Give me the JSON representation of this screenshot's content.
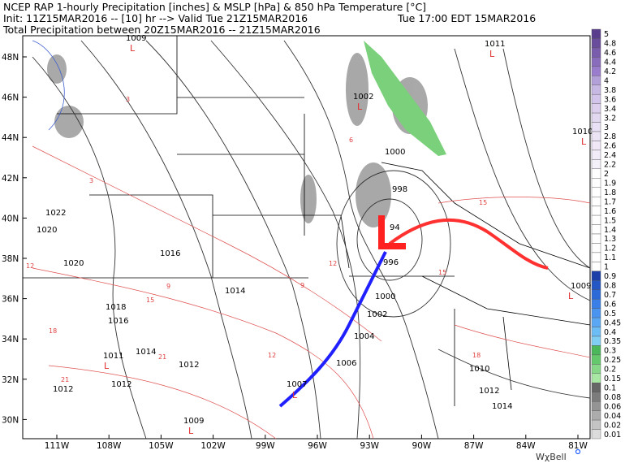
{
  "header": {
    "line1": "NCEP RAP 1-hourly Precipitation [inches] & MSLP [hPa] & 850 hPa Temperature [°C]",
    "init": "Init: 11Z15MAR2016 -- [10] hr --> Valid Tue 21Z15MAR2016",
    "local_time": "Tue 17:00 EDT 15MAR2016",
    "line3": "Total Precipitation between 20Z15MAR2016 -- 21Z15MAR2016"
  },
  "latitude_labels": [
    "48N",
    "46N",
    "44N",
    "42N",
    "40N",
    "38N",
    "36N",
    "34N",
    "32N",
    "30N"
  ],
  "longitude_labels": [
    "111W",
    "108W",
    "105W",
    "102W",
    "99W",
    "96W",
    "93W",
    "90W",
    "87W",
    "84W",
    "81W"
  ],
  "pressure_labels": [
    "1009",
    "1011",
    "1002",
    "1010",
    "1000",
    "998",
    "94",
    "996",
    "1000",
    "1002",
    "1004",
    "1006",
    "1007",
    "1022",
    "1020",
    "1020",
    "1016",
    "1014",
    "1018",
    "1016",
    "1014",
    "1012",
    "1011",
    "1012",
    "1012",
    "1009",
    "1009",
    "1010",
    "1012",
    "1014"
  ],
  "temperature_labels": [
    "3",
    "9",
    "12",
    "15",
    "18",
    "21",
    "6",
    "12",
    "15",
    "18",
    "21",
    "9",
    "3",
    "12",
    "15"
  ],
  "colorbar": {
    "levels": [
      "5",
      "4.8",
      "4.6",
      "4.4",
      "4.2",
      "4",
      "3.8",
      "3.6",
      "3.4",
      "3.2",
      "3",
      "2.8",
      "2.6",
      "2.4",
      "2.2",
      "2",
      "1.9",
      "1.8",
      "1.7",
      "1.6",
      "1.5",
      "1.4",
      "1.3",
      "1.2",
      "1.1",
      "1",
      "0.9",
      "0.8",
      "0.7",
      "0.6",
      "0.5",
      "0.45",
      "0.4",
      "0.35",
      "0.3",
      "0.25",
      "0.2",
      "0.15",
      "0.1",
      "0.08",
      "0.06",
      "0.04",
      "0.02",
      "0.01"
    ],
    "colors": [
      "#5a3d8c",
      "#6a4c9c",
      "#7a5cac",
      "#8a6cbc",
      "#9a7ccc",
      "#b4a0d8",
      "#c8b8e4",
      "#d2c4ea",
      "#dcd0ee",
      "#e2d8f0",
      "#e8e0f4",
      "#ece4f4",
      "#f0e8f6",
      "#f2ecf8",
      "#f4f0fa",
      "#ffffff",
      "#ffffff",
      "#ffffff",
      "#ffffff",
      "#ffffff",
      "#ffffff",
      "#ffffff",
      "#ffffff",
      "#ffffff",
      "#ffffff",
      "#ffffff",
      "#1c3fa8",
      "#2456c4",
      "#2c6ad8",
      "#3a7ee8",
      "#4a94f0",
      "#5aa8f4",
      "#6cbcf6",
      "#80cef4",
      "#4ab85a",
      "#64c86c",
      "#86d888",
      "#a8e8a4",
      "#666666",
      "#7c7c7c",
      "#949494",
      "#acacac",
      "#c4c4c4",
      "#dcdcdc"
    ]
  },
  "logo": "WχBell"
}
